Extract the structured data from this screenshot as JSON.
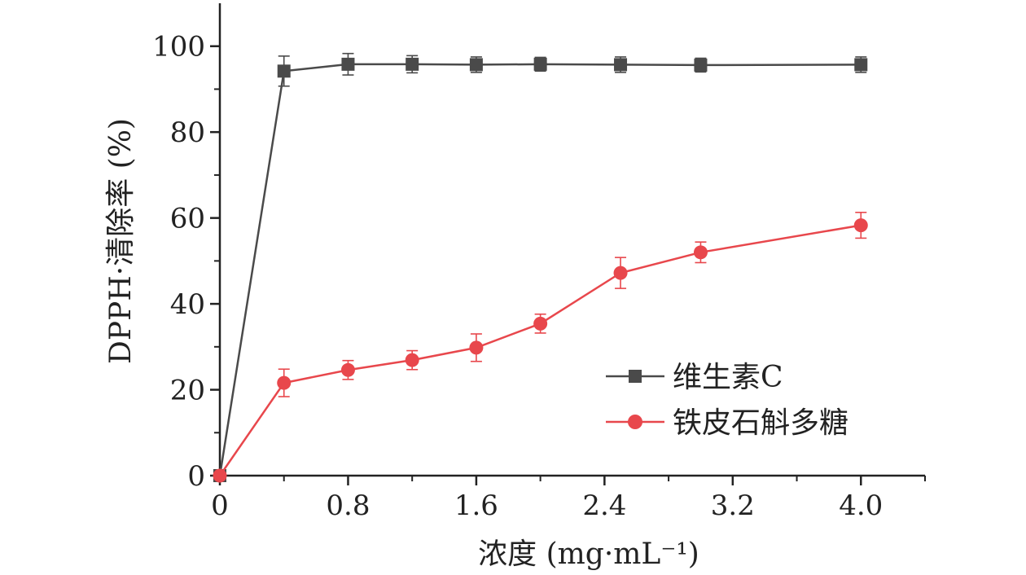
{
  "chart_data": {
    "type": "line",
    "title": "",
    "xlabel": "浓度 (mg·mL⁻¹)",
    "ylabel": "DPPH·清除率 (%)",
    "xlim": [
      0,
      4.4
    ],
    "ylim": [
      0,
      110
    ],
    "xticks": [
      0,
      0.8,
      1.6,
      2.4,
      3.2,
      4.0
    ],
    "xtick_labels": [
      "0",
      "0.8",
      "1.6",
      "2.4",
      "3.2",
      "4.0"
    ],
    "yticks": [
      0,
      20,
      40,
      60,
      80,
      100
    ],
    "ytick_labels": [
      "0",
      "20",
      "40",
      "60",
      "80",
      "100"
    ],
    "grid": false,
    "legend_position": "right",
    "series": [
      {
        "name": "维生素C",
        "color": "#4a4a4a",
        "marker": "square",
        "x": [
          0,
          0.4,
          0.8,
          1.2,
          1.6,
          2.0,
          2.5,
          3.0,
          4.0
        ],
        "y": [
          0,
          94.2,
          95.8,
          95.8,
          95.7,
          95.8,
          95.7,
          95.6,
          95.7
        ],
        "err": [
          0,
          3.5,
          2.5,
          2.0,
          1.8,
          1.6,
          1.8,
          1.6,
          1.8
        ]
      },
      {
        "name": "铁皮石斛多糖",
        "color": "#e8474c",
        "marker": "circle",
        "x": [
          0,
          0.4,
          0.8,
          1.2,
          1.6,
          2.0,
          2.5,
          3.0,
          4.0
        ],
        "y": [
          0,
          21.6,
          24.6,
          26.9,
          29.8,
          35.4,
          47.2,
          52.0,
          58.3
        ],
        "err": [
          0,
          3.2,
          2.2,
          2.2,
          3.2,
          2.2,
          3.6,
          2.4,
          3.0
        ]
      }
    ]
  }
}
